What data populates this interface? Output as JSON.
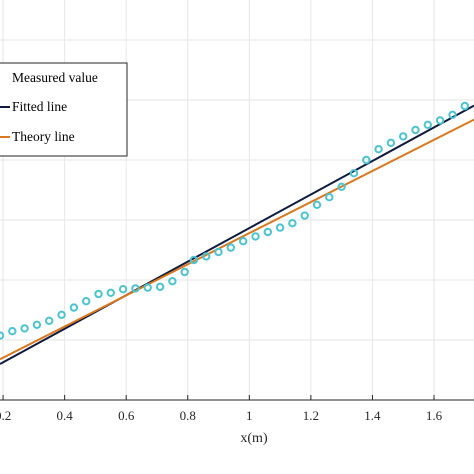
{
  "chart_data": {
    "type": "scatter",
    "xlabel": "x(m)",
    "ylabel": "",
    "title": "",
    "x_ticks": [
      "0.2",
      "0.4",
      "0.6",
      "0.8",
      "1",
      "1.2",
      "1.4",
      "1.6"
    ],
    "xlim": [
      0.19,
      1.73
    ],
    "ylim": [
      0,
      1
    ],
    "grid": true,
    "legend_position": "top-left",
    "series": [
      {
        "name": "Measured value",
        "kind": "markers",
        "color": "#4cc3cf",
        "x": [
          0.19,
          0.23,
          0.27,
          0.31,
          0.35,
          0.39,
          0.43,
          0.47,
          0.51,
          0.55,
          0.59,
          0.63,
          0.67,
          0.71,
          0.75,
          0.79,
          0.82,
          0.86,
          0.9,
          0.94,
          0.98,
          1.02,
          1.06,
          1.1,
          1.14,
          1.18,
          1.22,
          1.26,
          1.3,
          1.34,
          1.38,
          1.42,
          1.46,
          1.5,
          1.54,
          1.58,
          1.62,
          1.66,
          1.7
        ],
        "y": [
          0.161,
          0.172,
          0.179,
          0.188,
          0.198,
          0.213,
          0.231,
          0.247,
          0.265,
          0.268,
          0.277,
          0.279,
          0.281,
          0.283,
          0.297,
          0.32,
          0.35,
          0.359,
          0.37,
          0.381,
          0.397,
          0.409,
          0.42,
          0.431,
          0.442,
          0.461,
          0.488,
          0.507,
          0.533,
          0.567,
          0.6,
          0.627,
          0.643,
          0.659,
          0.675,
          0.688,
          0.699,
          0.713,
          0.735
        ]
      },
      {
        "name": "Fitted line",
        "kind": "line",
        "color": "#0f1b3d",
        "x": [
          0.19,
          1.73
        ],
        "y": [
          0.09,
          0.736
        ]
      },
      {
        "name": "Theory line",
        "kind": "line",
        "color": "#d9781f",
        "x": [
          0.19,
          1.73
        ],
        "y": [
          0.102,
          0.701
        ]
      }
    ]
  }
}
